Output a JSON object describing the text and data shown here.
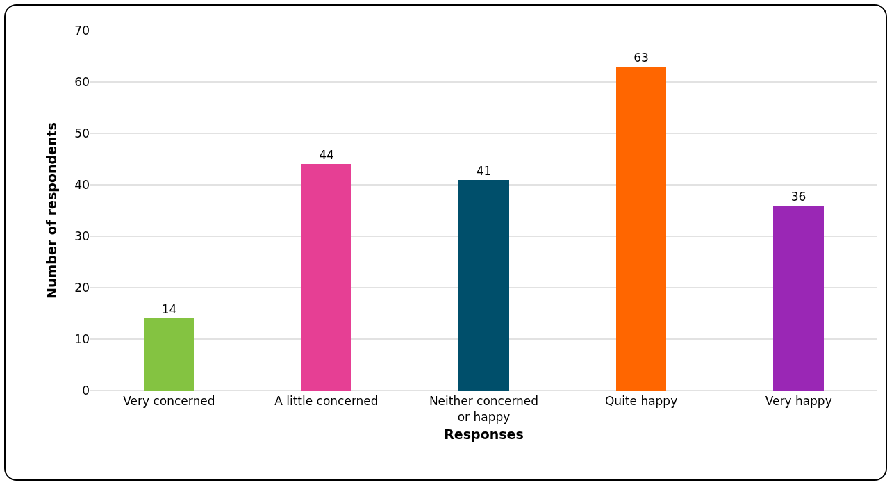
{
  "chart_data": {
    "type": "bar",
    "xlabel": "Responses",
    "ylabel": "Number of respondents",
    "categories": [
      "Very concerned",
      "A little concerned",
      "Neither concerned or happy",
      "Quite happy",
      "Very happy"
    ],
    "values": [
      14,
      44,
      41,
      63,
      36
    ],
    "colors": [
      "#84c341",
      "#e63f94",
      "#004f6b",
      "#ff6600",
      "#9a27b5"
    ],
    "ylim": [
      0,
      70
    ],
    "yticks": [
      0,
      10,
      20,
      30,
      40,
      50,
      60,
      70
    ],
    "grid": "y",
    "data_labels": true
  }
}
